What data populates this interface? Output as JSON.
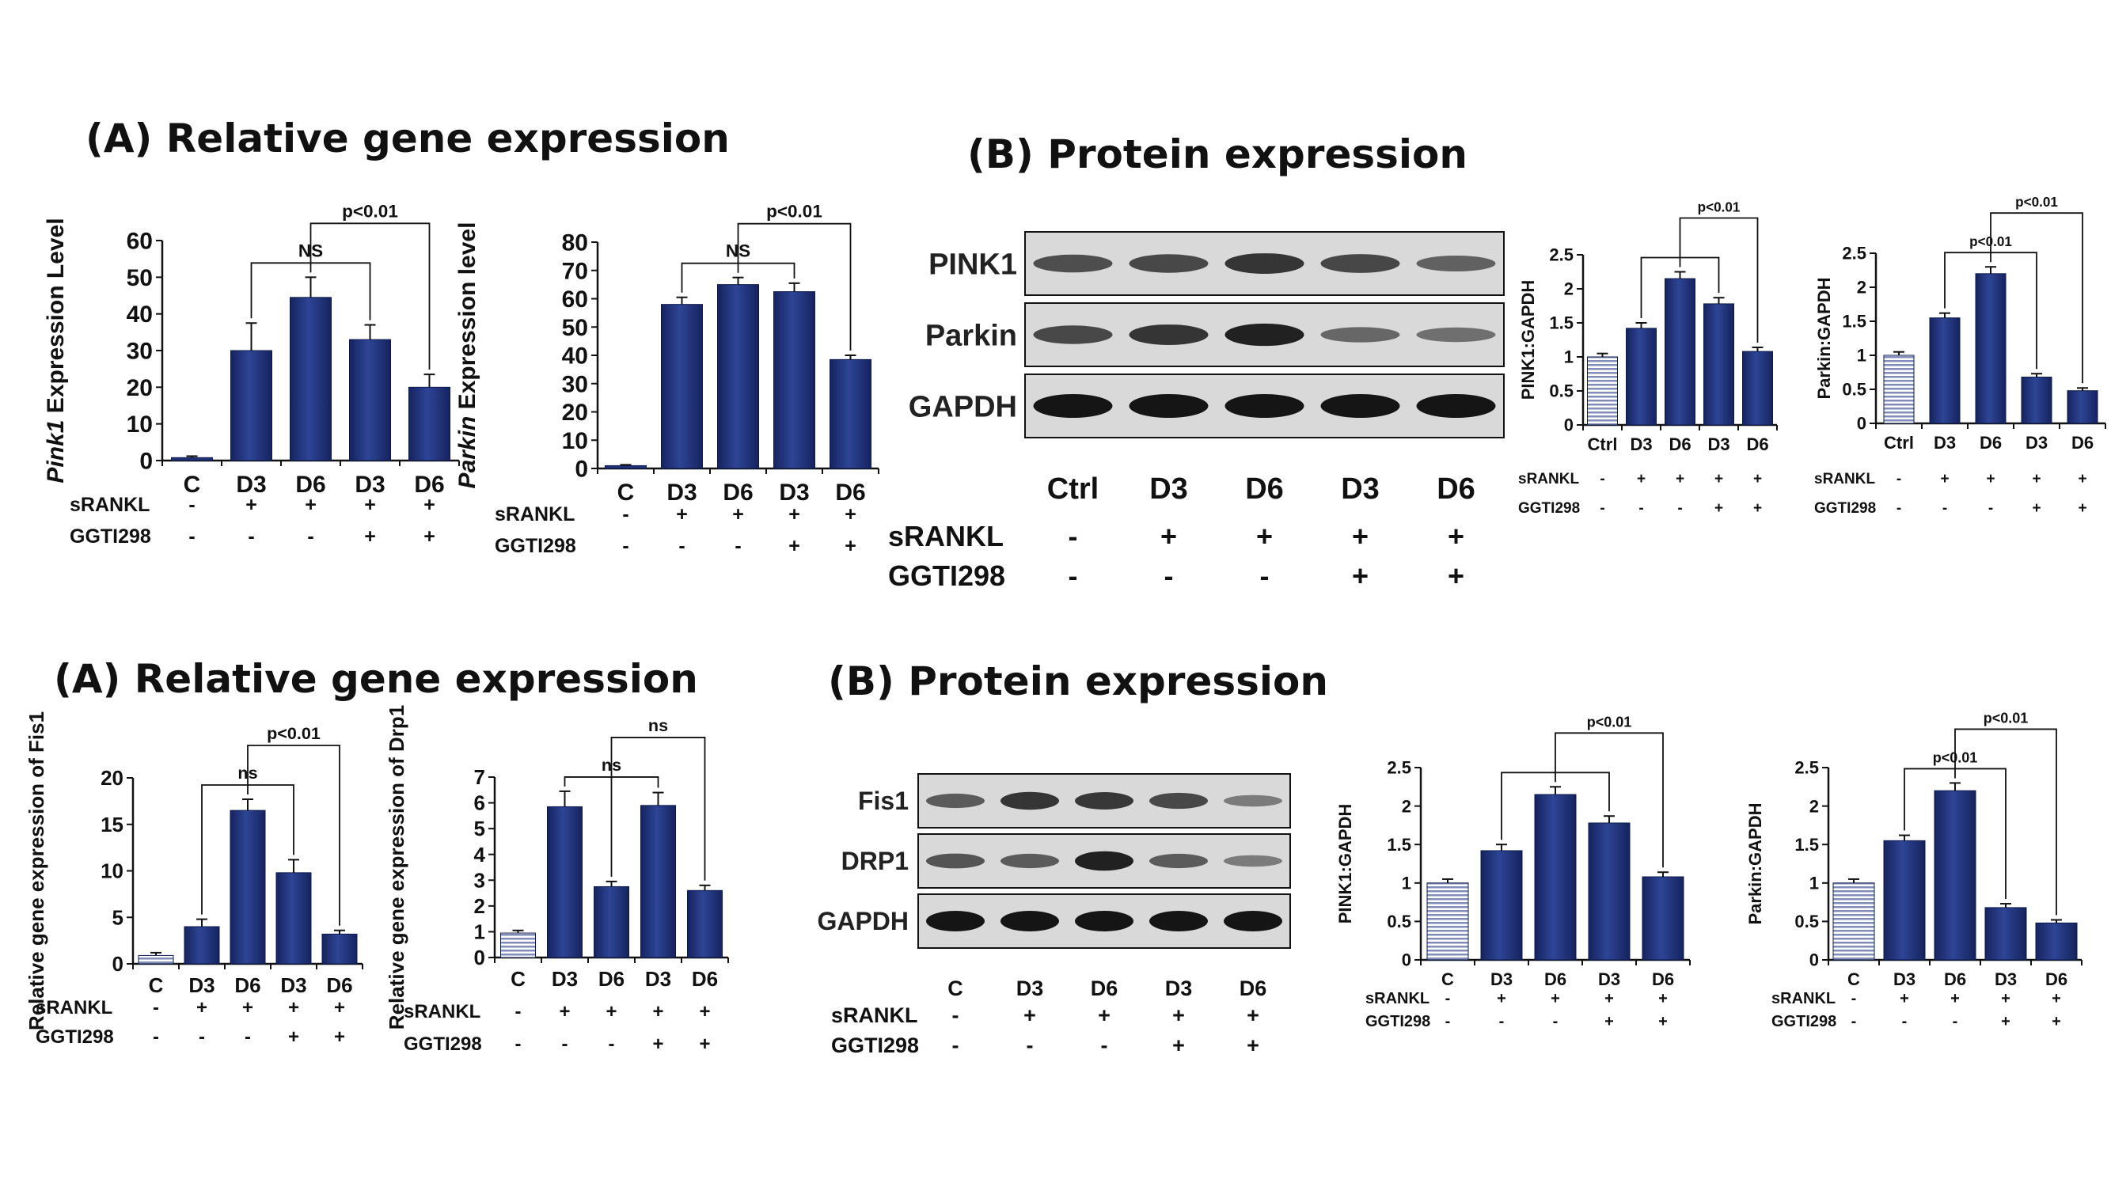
{
  "titles": [
    {
      "text": "(A) Relative gene expression"
    },
    {
      "text": "(B) Protein expression"
    },
    {
      "text": "(A) Relative gene expression"
    },
    {
      "text": "(B) Protein expression"
    }
  ],
  "colors": {
    "bar": "#1f3177",
    "bar_highlight": "#4c61b0",
    "control_hatch": "#7f8db8",
    "band": "#151515",
    "blot_bg": "#d8d8d8"
  },
  "chart_data": [
    {
      "type": "bar",
      "ylabel": "Pink1 Expression Level",
      "ylabel_italic": "Pink1",
      "categories": [
        "C",
        "D3",
        "D6",
        "D3",
        "D6"
      ],
      "values": [
        0.8,
        30,
        44.5,
        33,
        20
      ],
      "errors": [
        0.4,
        7.5,
        5.5,
        4,
        3.5
      ],
      "ylim": [
        0,
        60
      ],
      "yticks": [
        0,
        10,
        20,
        30,
        40,
        50,
        60
      ],
      "control_style": "solid",
      "treatments": [
        {
          "name": "sRANKL",
          "signs": [
            "-",
            "+",
            "+",
            "+",
            "+"
          ]
        },
        {
          "name": "GGTI298",
          "signs": [
            "-",
            "-",
            "-",
            "+",
            "+"
          ]
        }
      ],
      "annotations": [
        {
          "text": "NS",
          "from": 1,
          "to": 3
        },
        {
          "text": "p<0.01",
          "from": 2,
          "to": 4
        }
      ]
    },
    {
      "type": "bar",
      "ylabel": "Parkin Expression level",
      "ylabel_italic": "Parkin",
      "categories": [
        "C",
        "D3",
        "D6",
        "D3",
        "D6"
      ],
      "values": [
        1,
        58,
        65,
        62.5,
        38.5
      ],
      "errors": [
        0.3,
        2.5,
        2.5,
        3,
        1.5
      ],
      "ylim": [
        0,
        80
      ],
      "yticks": [
        0,
        10,
        20,
        30,
        40,
        50,
        60,
        70,
        80
      ],
      "control_style": "solid",
      "treatments": [
        {
          "name": "sRANKL",
          "signs": [
            "-",
            "+",
            "+",
            "+",
            "+"
          ]
        },
        {
          "name": "GGTI298",
          "signs": [
            "-",
            "-",
            "-",
            "+",
            "+"
          ]
        }
      ],
      "annotations": [
        {
          "text": "NS",
          "from": 1,
          "to": 3
        },
        {
          "text": "p<0.01",
          "from": 2,
          "to": 4
        }
      ]
    },
    {
      "type": "western_blot",
      "rows": [
        {
          "label": "PINK1",
          "bands": [
            0.55,
            0.6,
            0.75,
            0.62,
            0.4
          ]
        },
        {
          "label": "Parkin",
          "bands": [
            0.6,
            0.75,
            0.9,
            0.35,
            0.3
          ]
        },
        {
          "label": "GAPDH",
          "bands": [
            1,
            1,
            1,
            1,
            1
          ]
        }
      ],
      "lanes": [
        "Ctrl",
        "D3",
        "D6",
        "D3",
        "D6"
      ],
      "treatments": [
        {
          "name": "sRANKL",
          "signs": [
            "-",
            "+",
            "+",
            "+",
            "+"
          ]
        },
        {
          "name": "GGTI298",
          "signs": [
            "-",
            "-",
            "-",
            "+",
            "+"
          ]
        }
      ]
    },
    {
      "type": "bar",
      "ylabel": "PINK1:GAPDH",
      "categories": [
        "Ctrl",
        "D3",
        "D6",
        "D3",
        "D6"
      ],
      "values": [
        1,
        1.42,
        2.15,
        1.78,
        1.08
      ],
      "errors": [
        0.05,
        0.08,
        0.1,
        0.09,
        0.06
      ],
      "ylim": [
        0,
        2.5
      ],
      "yticks": [
        0,
        0.5,
        1,
        1.5,
        2,
        2.5
      ],
      "control_style": "hatched",
      "treatments": [
        {
          "name": "sRANKL",
          "signs": [
            "-",
            "+",
            "+",
            "+",
            "+"
          ]
        },
        {
          "name": "GGTI298",
          "signs": [
            "-",
            "-",
            "-",
            "+",
            "+"
          ]
        }
      ],
      "annotations": [
        {
          "text": "",
          "from": 1,
          "to": 3
        },
        {
          "text": "p<0.01",
          "from": 2,
          "to": 4
        }
      ]
    },
    {
      "type": "bar",
      "ylabel": "Parkin:GAPDH",
      "categories": [
        "Ctrl",
        "D3",
        "D6",
        "D3",
        "D6"
      ],
      "values": [
        1,
        1.55,
        2.2,
        0.68,
        0.48
      ],
      "errors": [
        0.05,
        0.07,
        0.1,
        0.05,
        0.04
      ],
      "ylim": [
        0,
        2.5
      ],
      "yticks": [
        0,
        0.5,
        1,
        1.5,
        2,
        2.5
      ],
      "control_style": "hatched",
      "treatments": [
        {
          "name": "sRANKL",
          "signs": [
            "-",
            "+",
            "+",
            "+",
            "+"
          ]
        },
        {
          "name": "GGTI298",
          "signs": [
            "-",
            "-",
            "-",
            "+",
            "+"
          ]
        }
      ],
      "annotations": [
        {
          "text": "p<0.01",
          "from": 1,
          "to": 3
        },
        {
          "text": "p<0.01",
          "from": 2,
          "to": 4
        }
      ]
    },
    {
      "type": "bar",
      "ylabel": "Relative gene expression of Fis1",
      "categories": [
        "C",
        "D3",
        "D6",
        "D3",
        "D6"
      ],
      "values": [
        0.9,
        4,
        16.5,
        9.8,
        3.2
      ],
      "errors": [
        0.3,
        0.8,
        1.2,
        1.4,
        0.4
      ],
      "ylim": [
        0,
        20
      ],
      "yticks": [
        0,
        5,
        10,
        15,
        20
      ],
      "control_style": "hatched",
      "treatments": [
        {
          "name": "sRANKL",
          "signs": [
            "-",
            "+",
            "+",
            "+",
            "+"
          ]
        },
        {
          "name": "GGTI298",
          "signs": [
            "-",
            "-",
            "-",
            "+",
            "+"
          ]
        }
      ],
      "annotations": [
        {
          "text": "ns",
          "from": 1,
          "to": 3
        },
        {
          "text": "p<0.01",
          "from": 2,
          "to": 4
        }
      ]
    },
    {
      "type": "bar",
      "ylabel": "Relative gene expression of Drp1",
      "categories": [
        "C",
        "D3",
        "D6",
        "D3",
        "D6"
      ],
      "values": [
        0.95,
        5.85,
        2.75,
        5.9,
        2.6
      ],
      "errors": [
        0.1,
        0.6,
        0.2,
        0.5,
        0.2
      ],
      "ylim": [
        0,
        7
      ],
      "yticks": [
        0,
        1,
        2,
        3,
        4,
        5,
        6,
        7
      ],
      "control_style": "hatched",
      "treatments": [
        {
          "name": "sRANKL",
          "signs": [
            "-",
            "+",
            "+",
            "+",
            "+"
          ]
        },
        {
          "name": "GGTI298",
          "signs": [
            "-",
            "-",
            "-",
            "+",
            "+"
          ]
        }
      ],
      "annotations": [
        {
          "text": "ns",
          "from": 1,
          "to": 3
        },
        {
          "text": "ns",
          "from": 2,
          "to": 4
        }
      ]
    },
    {
      "type": "western_blot",
      "rows": [
        {
          "label": "Fis1",
          "bands": [
            0.45,
            0.75,
            0.72,
            0.6,
            0.2
          ]
        },
        {
          "label": "DRP1",
          "bands": [
            0.5,
            0.45,
            0.9,
            0.45,
            0.2
          ]
        },
        {
          "label": "GAPDH",
          "bands": [
            1,
            1,
            1,
            1,
            1
          ]
        }
      ],
      "lanes": [
        "C",
        "D3",
        "D6",
        "D3",
        "D6"
      ],
      "treatments": [
        {
          "name": "sRANKL",
          "signs": [
            "-",
            "+",
            "+",
            "+",
            "+"
          ]
        },
        {
          "name": "GGTI298",
          "signs": [
            "-",
            "-",
            "-",
            "+",
            "+"
          ]
        }
      ]
    },
    {
      "type": "bar",
      "ylabel": "PINK1:GAPDH",
      "categories": [
        "C",
        "D3",
        "D6",
        "D3",
        "D6"
      ],
      "values": [
        1,
        1.42,
        2.15,
        1.78,
        1.08
      ],
      "errors": [
        0.05,
        0.08,
        0.1,
        0.09,
        0.06
      ],
      "ylim": [
        0,
        2.5
      ],
      "yticks": [
        0,
        0.5,
        1,
        1.5,
        2,
        2.5
      ],
      "control_style": "hatched",
      "treatments": [
        {
          "name": "sRANKL",
          "signs": [
            "-",
            "+",
            "+",
            "+",
            "+"
          ]
        },
        {
          "name": "GGTI298",
          "signs": [
            "-",
            "-",
            "-",
            "+",
            "+"
          ]
        }
      ],
      "annotations": [
        {
          "text": "",
          "from": 1,
          "to": 3
        },
        {
          "text": "p<0.01",
          "from": 2,
          "to": 4
        }
      ]
    },
    {
      "type": "bar",
      "ylabel": "Parkin:GAPDH",
      "categories": [
        "C",
        "D3",
        "D6",
        "D3",
        "D6"
      ],
      "values": [
        1,
        1.55,
        2.2,
        0.68,
        0.48
      ],
      "errors": [
        0.05,
        0.07,
        0.1,
        0.05,
        0.04
      ],
      "ylim": [
        0,
        2.5
      ],
      "yticks": [
        0,
        0.5,
        1,
        1.5,
        2,
        2.5
      ],
      "control_style": "hatched",
      "treatments": [
        {
          "name": "sRANKL",
          "signs": [
            "-",
            "+",
            "+",
            "+",
            "+"
          ]
        },
        {
          "name": "GGTI298",
          "signs": [
            "-",
            "-",
            "-",
            "+",
            "+"
          ]
        }
      ],
      "annotations": [
        {
          "text": "p<0.01",
          "from": 1,
          "to": 3
        },
        {
          "text": "p<0.01",
          "from": 2,
          "to": 4
        }
      ]
    }
  ]
}
